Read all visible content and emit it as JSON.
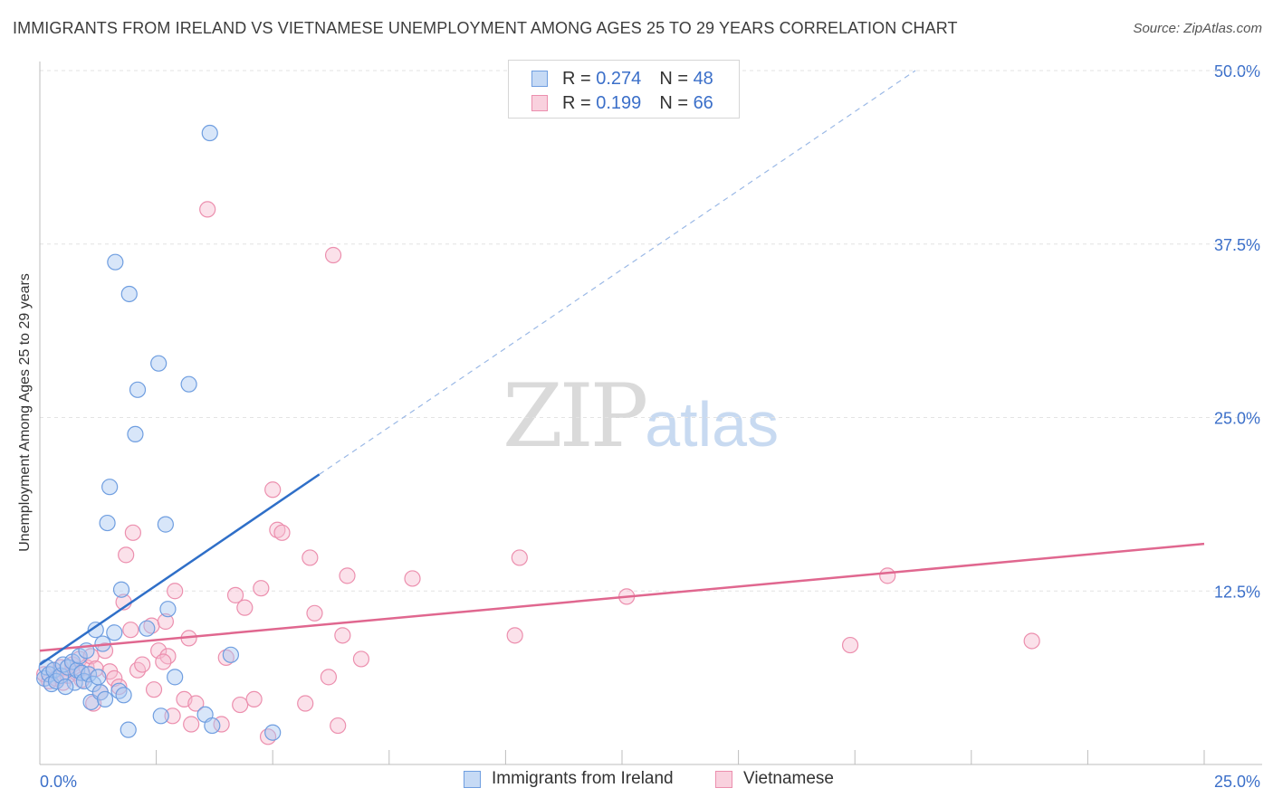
{
  "title": "IMMIGRANTS FROM IRELAND VS VIETNAMESE UNEMPLOYMENT AMONG AGES 25 TO 29 YEARS CORRELATION CHART",
  "source": "Source: ZipAtlas.com",
  "watermark": {
    "zip": "ZIP",
    "atlas": "atlas"
  },
  "colors": {
    "ireland_fill": "#a9c8f1",
    "ireland_stroke": "#6f9ee0",
    "ireland_line": "#2f6fc8",
    "viet_fill": "#f7bdd0",
    "viet_stroke": "#ec8fae",
    "viet_line": "#e0678f",
    "grid": "#e3e3e3",
    "axis_text": "#3b6fc9"
  },
  "legend": {
    "series1": {
      "r_label": "R =",
      "r_value": "0.274",
      "n_label": "N =",
      "n_value": "48"
    },
    "series2": {
      "r_label": "R =",
      "r_value": "0.199",
      "n_label": "N =",
      "n_value": "66"
    }
  },
  "bottom_legend": {
    "series1": "Immigrants from Ireland",
    "series2": "Vietnamese"
  },
  "chart_data": {
    "type": "scatter",
    "title": "IMMIGRANTS FROM IRELAND VS VIETNAMESE UNEMPLOYMENT AMONG AGES 25 TO 29 YEARS CORRELATION CHART",
    "xlabel": "",
    "ylabel": "Unemployment Among Ages 25 to 29 years",
    "xlim": [
      0,
      25
    ],
    "ylim": [
      0,
      50
    ],
    "x_tick_labels": [
      "0.0%",
      "25.0%"
    ],
    "y_ticks": [
      12.5,
      25.0,
      37.5,
      50.0
    ],
    "y_tick_labels": [
      "12.5%",
      "25.0%",
      "37.5%",
      "50.0%"
    ],
    "series": [
      {
        "name": "Immigrants from Ireland",
        "R": 0.274,
        "N": 48,
        "trend": {
          "x": [
            0,
            6.0
          ],
          "y": [
            7.2,
            20.9
          ],
          "dashed_to": [
            18.8,
            50
          ]
        },
        "points": [
          [
            0.1,
            6.2
          ],
          [
            0.15,
            7.0
          ],
          [
            0.2,
            6.5
          ],
          [
            0.25,
            5.8
          ],
          [
            0.3,
            6.8
          ],
          [
            0.35,
            6.0
          ],
          [
            0.45,
            6.4
          ],
          [
            0.5,
            7.2
          ],
          [
            0.6,
            7.0
          ],
          [
            0.7,
            7.4
          ],
          [
            0.75,
            5.9
          ],
          [
            0.8,
            6.8
          ],
          [
            0.85,
            7.8
          ],
          [
            0.9,
            6.6
          ],
          [
            0.95,
            6.0
          ],
          [
            1.0,
            8.2
          ],
          [
            1.05,
            6.5
          ],
          [
            1.1,
            4.5
          ],
          [
            1.15,
            5.8
          ],
          [
            1.2,
            9.7
          ],
          [
            1.25,
            6.3
          ],
          [
            1.3,
            5.2
          ],
          [
            1.35,
            8.7
          ],
          [
            1.4,
            4.7
          ],
          [
            1.5,
            20.0
          ],
          [
            1.45,
            17.4
          ],
          [
            1.6,
            9.5
          ],
          [
            1.62,
            36.2
          ],
          [
            1.7,
            5.3
          ],
          [
            1.75,
            12.6
          ],
          [
            1.8,
            5.0
          ],
          [
            1.9,
            2.5
          ],
          [
            1.92,
            33.9
          ],
          [
            2.1,
            27.0
          ],
          [
            2.05,
            23.8
          ],
          [
            2.3,
            9.8
          ],
          [
            2.55,
            28.9
          ],
          [
            2.6,
            3.5
          ],
          [
            2.7,
            17.3
          ],
          [
            2.75,
            11.2
          ],
          [
            2.9,
            6.3
          ],
          [
            3.2,
            27.4
          ],
          [
            3.55,
            3.6
          ],
          [
            3.65,
            45.5
          ],
          [
            3.7,
            2.8
          ],
          [
            4.1,
            7.9
          ],
          [
            5.0,
            2.3
          ],
          [
            0.55,
            5.6
          ]
        ]
      },
      {
        "name": "Vietnamese",
        "R": 0.199,
        "N": 66,
        "trend": {
          "x": [
            0,
            25
          ],
          "y": [
            8.2,
            15.9
          ]
        },
        "points": [
          [
            0.1,
            6.5
          ],
          [
            0.2,
            6.0
          ],
          [
            0.3,
            6.8
          ],
          [
            0.35,
            6.2
          ],
          [
            0.45,
            7.0
          ],
          [
            0.5,
            5.9
          ],
          [
            0.6,
            6.4
          ],
          [
            0.7,
            7.2
          ],
          [
            0.8,
            6.6
          ],
          [
            0.85,
            7.6
          ],
          [
            0.9,
            6.1
          ],
          [
            1.0,
            7.0
          ],
          [
            1.1,
            7.8
          ],
          [
            1.2,
            6.9
          ],
          [
            1.3,
            5.2
          ],
          [
            1.4,
            8.2
          ],
          [
            1.5,
            6.7
          ],
          [
            1.6,
            6.2
          ],
          [
            1.7,
            5.6
          ],
          [
            1.8,
            11.7
          ],
          [
            1.85,
            15.1
          ],
          [
            1.95,
            9.7
          ],
          [
            2.0,
            16.7
          ],
          [
            2.1,
            6.8
          ],
          [
            2.2,
            7.2
          ],
          [
            2.4,
            10.0
          ],
          [
            2.55,
            8.2
          ],
          [
            2.7,
            10.3
          ],
          [
            2.75,
            7.8
          ],
          [
            2.85,
            3.5
          ],
          [
            2.9,
            12.5
          ],
          [
            3.1,
            4.7
          ],
          [
            3.2,
            9.1
          ],
          [
            3.25,
            2.9
          ],
          [
            3.6,
            40.0
          ],
          [
            3.9,
            2.9
          ],
          [
            4.0,
            7.7
          ],
          [
            4.2,
            12.2
          ],
          [
            4.3,
            4.3
          ],
          [
            4.4,
            11.3
          ],
          [
            4.6,
            4.7
          ],
          [
            4.75,
            12.7
          ],
          [
            4.9,
            2.0
          ],
          [
            5.0,
            19.8
          ],
          [
            5.1,
            16.9
          ],
          [
            5.2,
            16.7
          ],
          [
            5.7,
            4.4
          ],
          [
            5.8,
            14.9
          ],
          [
            5.9,
            10.9
          ],
          [
            6.2,
            6.3
          ],
          [
            6.3,
            36.7
          ],
          [
            6.4,
            2.8
          ],
          [
            6.5,
            9.3
          ],
          [
            6.6,
            13.6
          ],
          [
            6.9,
            7.6
          ],
          [
            8.0,
            13.4
          ],
          [
            10.2,
            9.3
          ],
          [
            10.3,
            14.9
          ],
          [
            12.6,
            12.1
          ],
          [
            17.4,
            8.6
          ],
          [
            18.2,
            13.6
          ],
          [
            21.3,
            8.9
          ],
          [
            1.15,
            4.4
          ],
          [
            2.45,
            5.4
          ],
          [
            2.65,
            7.4
          ],
          [
            3.35,
            4.4
          ]
        ]
      }
    ]
  }
}
